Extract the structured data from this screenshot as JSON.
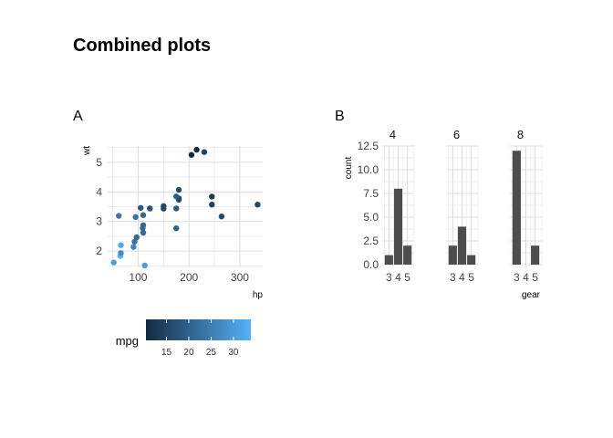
{
  "title": "Combined plots",
  "panels": {
    "a_label": "A",
    "b_label": "B"
  },
  "chart_data": [
    {
      "type": "scatter",
      "panel": "A",
      "xlabel": "hp",
      "ylabel": "wt",
      "xlim": [
        40,
        345
      ],
      "ylim": [
        1.45,
        5.55
      ],
      "xticks": [
        100,
        200,
        300
      ],
      "yticks": [
        2,
        3,
        4,
        5
      ],
      "grid": true,
      "color_by": "mpg",
      "legend": {
        "title": "mpg",
        "ticks": [
          15,
          20,
          25,
          30
        ],
        "range": [
          10.4,
          33.9
        ],
        "position": "bottom",
        "low_color": "#132B43",
        "high_color": "#56B1F7"
      },
      "points": [
        {
          "x": 110,
          "y": 2.62,
          "c": 21.0
        },
        {
          "x": 110,
          "y": 2.875,
          "c": 21.0
        },
        {
          "x": 93,
          "y": 2.32,
          "c": 22.8
        },
        {
          "x": 110,
          "y": 3.215,
          "c": 21.4
        },
        {
          "x": 175,
          "y": 3.44,
          "c": 18.7
        },
        {
          "x": 105,
          "y": 3.46,
          "c": 18.1
        },
        {
          "x": 245,
          "y": 3.57,
          "c": 14.3
        },
        {
          "x": 62,
          "y": 3.19,
          "c": 24.4
        },
        {
          "x": 95,
          "y": 3.15,
          "c": 22.8
        },
        {
          "x": 123,
          "y": 3.44,
          "c": 19.2
        },
        {
          "x": 123,
          "y": 3.44,
          "c": 17.8
        },
        {
          "x": 180,
          "y": 4.07,
          "c": 16.4
        },
        {
          "x": 180,
          "y": 3.73,
          "c": 17.3
        },
        {
          "x": 180,
          "y": 3.78,
          "c": 15.2
        },
        {
          "x": 205,
          "y": 5.25,
          "c": 10.4
        },
        {
          "x": 215,
          "y": 5.424,
          "c": 10.4
        },
        {
          "x": 230,
          "y": 5.345,
          "c": 14.7
        },
        {
          "x": 66,
          "y": 2.2,
          "c": 32.4
        },
        {
          "x": 52,
          "y": 1.615,
          "c": 30.4
        },
        {
          "x": 65,
          "y": 1.835,
          "c": 33.9
        },
        {
          "x": 97,
          "y": 2.465,
          "c": 21.5
        },
        {
          "x": 150,
          "y": 3.52,
          "c": 15.5
        },
        {
          "x": 150,
          "y": 3.435,
          "c": 15.2
        },
        {
          "x": 245,
          "y": 3.84,
          "c": 13.3
        },
        {
          "x": 175,
          "y": 3.845,
          "c": 19.2
        },
        {
          "x": 66,
          "y": 1.935,
          "c": 27.3
        },
        {
          "x": 91,
          "y": 2.14,
          "c": 26.0
        },
        {
          "x": 113,
          "y": 1.513,
          "c": 30.4
        },
        {
          "x": 264,
          "y": 3.17,
          "c": 15.8
        },
        {
          "x": 175,
          "y": 2.77,
          "c": 19.7
        },
        {
          "x": 335,
          "y": 3.57,
          "c": 15.0
        },
        {
          "x": 109,
          "y": 2.78,
          "c": 21.4
        }
      ]
    },
    {
      "type": "bar",
      "panel": "B",
      "xlabel": "gear",
      "ylabel": "count",
      "ylim": [
        0,
        12.5
      ],
      "yticks": [
        "0.0",
        "2.5",
        "5.0",
        "7.5",
        "10.0",
        "12.5"
      ],
      "categories": [
        "3",
        "4",
        "5"
      ],
      "bar_color": "#4d4d4d",
      "grid": true,
      "facets": [
        {
          "label": "4",
          "values": [
            1,
            8,
            2
          ]
        },
        {
          "label": "6",
          "values": [
            2,
            4,
            1
          ]
        },
        {
          "label": "8",
          "values": [
            12,
            0,
            2
          ]
        }
      ]
    }
  ]
}
